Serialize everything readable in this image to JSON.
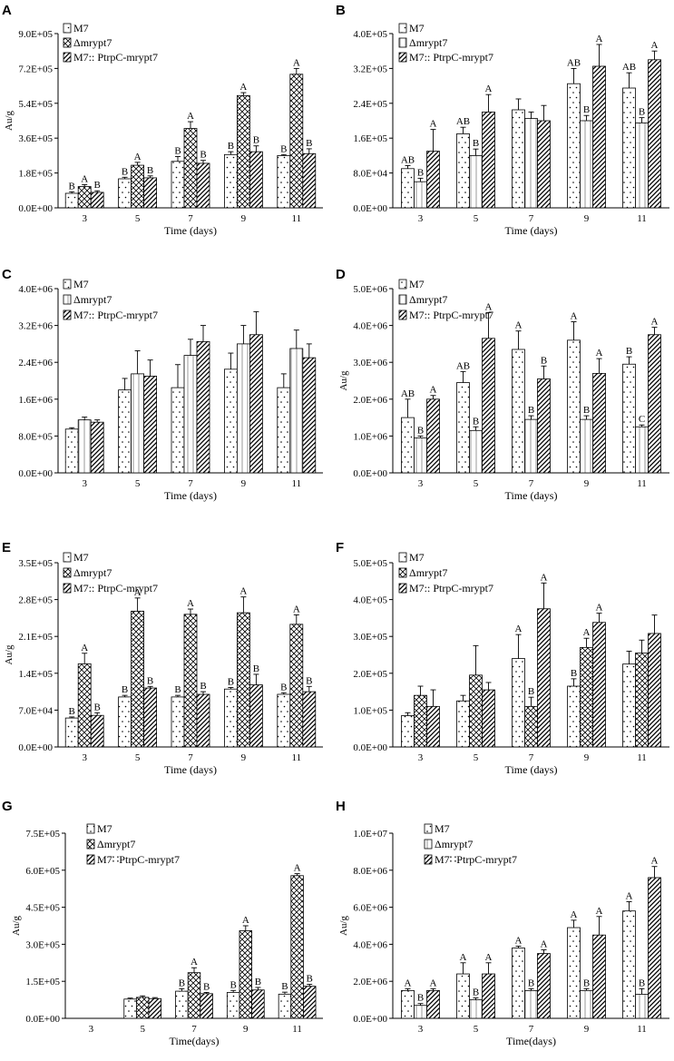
{
  "figure": {
    "panel_count": 8
  },
  "chart_data": [
    {
      "panel": "A",
      "type": "bar",
      "ylabel": "Au/g",
      "xlabel": "Time (days)",
      "categories": [
        "3",
        "5",
        "7",
        "9",
        "11"
      ],
      "ylim": [
        0,
        900000
      ],
      "yticks": [
        "0.0E+00",
        "1.8E+05",
        "3.6E+05",
        "5.4E+05",
        "7.2E+05",
        "9.0E+05"
      ],
      "legend": [
        "M7",
        "Δmrypt7",
        "M7:: PtrpC-mrypt7"
      ],
      "series": [
        {
          "name": "M7",
          "pattern": "dots",
          "values": [
            75000,
            150000,
            240000,
            275000,
            270000
          ],
          "errors": [
            8000,
            8000,
            25000,
            15000,
            5000
          ],
          "labels": [
            "B",
            "B",
            "B",
            "B",
            "B"
          ]
        },
        {
          "name": "Δmrypt7",
          "pattern": "cross",
          "values": [
            110000,
            220000,
            410000,
            580000,
            690000
          ],
          "errors": [
            10000,
            15000,
            35000,
            15000,
            30000
          ],
          "labels": [
            "A",
            "A",
            "A",
            "A",
            "A"
          ]
        },
        {
          "name": "M7:: PtrpC-mrypt7",
          "pattern": "diag",
          "values": [
            80000,
            155000,
            230000,
            290000,
            280000
          ],
          "errors": [
            8000,
            10000,
            15000,
            30000,
            25000
          ],
          "labels": [
            "B",
            "B",
            "B",
            "B",
            "B"
          ]
        }
      ]
    },
    {
      "panel": "B",
      "type": "bar",
      "ylabel": "",
      "xlabel": "Time (days)",
      "categories": [
        "3",
        "5",
        "7",
        "9",
        "11"
      ],
      "ylim": [
        0,
        400000
      ],
      "yticks": [
        "0.0E+00",
        "8.0E+04",
        "1.6E+05",
        "2.4E+05",
        "3.2E+05",
        "4.0E+05"
      ],
      "legend": [
        "M7",
        "Δmrypt7",
        "M7:: PtrpC-mrypt7"
      ],
      "series": [
        {
          "name": "M7",
          "pattern": "dots",
          "values": [
            90000,
            170000,
            225000,
            285000,
            275000
          ],
          "errors": [
            7000,
            15000,
            25000,
            35000,
            35000
          ],
          "labels": [
            "AB",
            "AB",
            "",
            "AB",
            "AB"
          ]
        },
        {
          "name": "Δmrypt7",
          "pattern": "vline",
          "values": [
            60000,
            120000,
            205000,
            200000,
            195000
          ],
          "errors": [
            8000,
            15000,
            15000,
            12000,
            12000
          ],
          "labels": [
            "B",
            "B",
            "",
            "B",
            "B"
          ]
        },
        {
          "name": "M7:: PtrpC-mrypt7",
          "pattern": "diag",
          "values": [
            130000,
            220000,
            200000,
            325000,
            340000
          ],
          "errors": [
            50000,
            40000,
            35000,
            50000,
            20000
          ],
          "labels": [
            "A",
            "A",
            "",
            "A",
            "A"
          ]
        }
      ]
    },
    {
      "panel": "C",
      "type": "bar",
      "ylabel": "",
      "xlabel": "Time (days)",
      "categories": [
        "3",
        "5",
        "7",
        "9",
        "11"
      ],
      "ylim": [
        0,
        4000000
      ],
      "yticks": [
        "0.0E+00",
        "8.0E+05",
        "1.6E+06",
        "2.4E+06",
        "3.2E+06",
        "4.0E+06"
      ],
      "legend": [
        "M7",
        "Δmrypt7",
        "M7:: PtrpC-mrypt7"
      ],
      "series": [
        {
          "name": "M7",
          "pattern": "dots",
          "values": [
            950000,
            1800000,
            1850000,
            2250000,
            1850000
          ],
          "errors": [
            30000,
            250000,
            500000,
            350000,
            300000
          ],
          "labels": [
            "",
            "",
            "",
            "",
            ""
          ]
        },
        {
          "name": "Δmrypt7",
          "pattern": "vline",
          "values": [
            1150000,
            2150000,
            2550000,
            2800000,
            2700000
          ],
          "errors": [
            60000,
            500000,
            350000,
            400000,
            400000
          ],
          "labels": [
            "",
            "",
            "",
            "",
            ""
          ]
        },
        {
          "name": "M7:: PtrpC-mrypt7",
          "pattern": "diag",
          "values": [
            1100000,
            2100000,
            2850000,
            3000000,
            2500000
          ],
          "errors": [
            50000,
            350000,
            350000,
            500000,
            300000
          ],
          "labels": [
            "",
            "",
            "",
            "",
            ""
          ]
        }
      ]
    },
    {
      "panel": "D",
      "type": "bar",
      "ylabel": "Au/g",
      "xlabel": "Time (days)",
      "categories": [
        "3",
        "5",
        "7",
        "9",
        "11"
      ],
      "ylim": [
        0,
        5000000
      ],
      "yticks": [
        "0.0E+00",
        "1.0E+06",
        "2.0E+06",
        "3.0E+06",
        "4.0E+06",
        "5.0E+06"
      ],
      "legend": [
        "M7",
        "Δmrypt7",
        "M7:: PtrpC-mrypt7"
      ],
      "series": [
        {
          "name": "M7",
          "pattern": "dots",
          "values": [
            1500000,
            2450000,
            3350000,
            3600000,
            2950000
          ],
          "errors": [
            500000,
            300000,
            500000,
            500000,
            200000
          ],
          "labels": [
            "AB",
            "AB",
            "A",
            "A",
            "B"
          ]
        },
        {
          "name": "Δmrypt7",
          "pattern": "vline",
          "values": [
            950000,
            1150000,
            1450000,
            1450000,
            1250000
          ],
          "errors": [
            50000,
            100000,
            100000,
            100000,
            50000
          ],
          "labels": [
            "B",
            "B",
            "B",
            "B",
            "C"
          ]
        },
        {
          "name": "M7:: PtrpC-mrypt7",
          "pattern": "diag",
          "values": [
            2000000,
            3650000,
            2550000,
            2700000,
            3750000
          ],
          "errors": [
            100000,
            700000,
            350000,
            400000,
            200000
          ],
          "labels": [
            "A",
            "A",
            "B",
            "A",
            "A"
          ]
        }
      ]
    },
    {
      "panel": "E",
      "type": "bar",
      "ylabel": "Au/g",
      "xlabel": "Time (days)",
      "categories": [
        "3",
        "5",
        "7",
        "9",
        "11"
      ],
      "ylim": [
        0,
        350000
      ],
      "yticks": [
        "0.0E+00",
        "7.0E+04",
        "1.4E+05",
        "2.1E+05",
        "2.8E+05",
        "3.5E+05"
      ],
      "legend": [
        "M7",
        "Δmrypt7",
        "M7:: PtrpC-mrypt7"
      ],
      "series": [
        {
          "name": "M7",
          "pattern": "dots",
          "values": [
            55000,
            95000,
            95000,
            110000,
            100000
          ],
          "errors": [
            2000,
            3000,
            3000,
            3000,
            3000
          ],
          "labels": [
            "B",
            "B",
            "B",
            "B",
            "B"
          ]
        },
        {
          "name": "Δmrypt7",
          "pattern": "cross",
          "values": [
            158000,
            258000,
            252000,
            255000,
            233000
          ],
          "errors": [
            20000,
            25000,
            10000,
            30000,
            18000
          ],
          "labels": [
            "A",
            "A",
            "A",
            "A",
            "A"
          ]
        },
        {
          "name": "M7:: PtrpC-mrypt7",
          "pattern": "diag",
          "values": [
            60000,
            112000,
            100000,
            118000,
            105000
          ],
          "errors": [
            5000,
            3000,
            5000,
            20000,
            10000
          ],
          "labels": [
            "B",
            "B",
            "B",
            "B",
            "B"
          ]
        }
      ]
    },
    {
      "panel": "F",
      "type": "bar",
      "ylabel": "",
      "xlabel": "Time (days)",
      "categories": [
        "3",
        "5",
        "7",
        "9",
        "11"
      ],
      "ylim": [
        0,
        500000
      ],
      "yticks": [
        "0.0E+00",
        "1.0E+05",
        "2.0E+05",
        "3.0E+05",
        "4.0E+05",
        "5.0E+05"
      ],
      "legend": [
        "M7",
        "Δmrypt7",
        "M7:: PtrpC-mrypt7"
      ],
      "series": [
        {
          "name": "M7",
          "pattern": "dots",
          "values": [
            85000,
            125000,
            240000,
            165000,
            225000
          ],
          "errors": [
            8000,
            15000,
            65000,
            20000,
            35000
          ],
          "labels": [
            "",
            "",
            "A",
            "B",
            ""
          ]
        },
        {
          "name": "Δmrypt7",
          "pattern": "cross",
          "values": [
            140000,
            195000,
            110000,
            270000,
            255000
          ],
          "errors": [
            25000,
            80000,
            25000,
            25000,
            35000
          ],
          "labels": [
            "",
            "",
            "B",
            "A",
            ""
          ]
        },
        {
          "name": "M7:: PtrpC-mrypt7",
          "pattern": "diag",
          "values": [
            110000,
            155000,
            375000,
            338000,
            308000
          ],
          "errors": [
            45000,
            20000,
            70000,
            25000,
            50000
          ],
          "labels": [
            "",
            "",
            "A",
            "A",
            ""
          ]
        }
      ]
    },
    {
      "panel": "G",
      "type": "bar",
      "ylabel": "Au/g",
      "xlabel": "Time(days)",
      "categories": [
        "3",
        "5",
        "7",
        "9",
        "11"
      ],
      "ylim": [
        0,
        750000
      ],
      "yticks": [
        "0.0E+00",
        "1.5E+05",
        "3.0E+05",
        "4.5E+05",
        "6.0E+05",
        "7.5E+05"
      ],
      "legend": [
        "M7",
        "Δmrypt7",
        "M7∷PtrpC-mrypt7"
      ],
      "series": [
        {
          "name": "M7",
          "pattern": "dots",
          "values": [
            0,
            78000,
            110000,
            105000,
            98000
          ],
          "errors": [
            0,
            4000,
            10000,
            8000,
            8000
          ],
          "labels": [
            "",
            "",
            "B",
            "B",
            "B"
          ]
        },
        {
          "name": "Δmrypt7",
          "pattern": "cross",
          "values": [
            0,
            85000,
            185000,
            355000,
            578000
          ],
          "errors": [
            0,
            6000,
            20000,
            20000,
            8000
          ],
          "labels": [
            "",
            "",
            "A",
            "A",
            "A"
          ]
        },
        {
          "name": "M7∷PtrpC-mrypt7",
          "pattern": "diag",
          "values": [
            0,
            80000,
            100000,
            115000,
            130000
          ],
          "errors": [
            0,
            4000,
            5000,
            10000,
            8000
          ],
          "labels": [
            "",
            "",
            "B",
            "B",
            "B"
          ]
        }
      ]
    },
    {
      "panel": "H",
      "type": "bar",
      "ylabel": "Au/g",
      "xlabel": "Time(days)",
      "categories": [
        "3",
        "5",
        "7",
        "9",
        "11"
      ],
      "ylim": [
        0,
        10000000
      ],
      "yticks": [
        "0.0E+00",
        "2.0E+06",
        "4.0E+06",
        "6.0E+06",
        "8.0E+06",
        "1.0E+07"
      ],
      "legend": [
        "M7",
        "Δmrypt7",
        "M7∷PtrpC-mrypt7"
      ],
      "series": [
        {
          "name": "M7",
          "pattern": "dots",
          "values": [
            1500000,
            2400000,
            3800000,
            4900000,
            5800000
          ],
          "errors": [
            100000,
            600000,
            100000,
            400000,
            500000
          ],
          "labels": [
            "A",
            "A",
            "A",
            "A",
            "A"
          ]
        },
        {
          "name": "Δmrypt7",
          "pattern": "vline",
          "values": [
            700000,
            1000000,
            1500000,
            1500000,
            1300000
          ],
          "errors": [
            100000,
            100000,
            100000,
            100000,
            300000
          ],
          "labels": [
            "B",
            "B",
            "B",
            "B",
            "B"
          ]
        },
        {
          "name": "M7∷PtrpC-mrypt7",
          "pattern": "diag",
          "values": [
            1500000,
            2400000,
            3500000,
            4500000,
            7600000
          ],
          "errors": [
            100000,
            600000,
            200000,
            1000000,
            600000
          ],
          "labels": [
            "A",
            "A",
            "A",
            "A",
            "A"
          ]
        }
      ]
    }
  ]
}
